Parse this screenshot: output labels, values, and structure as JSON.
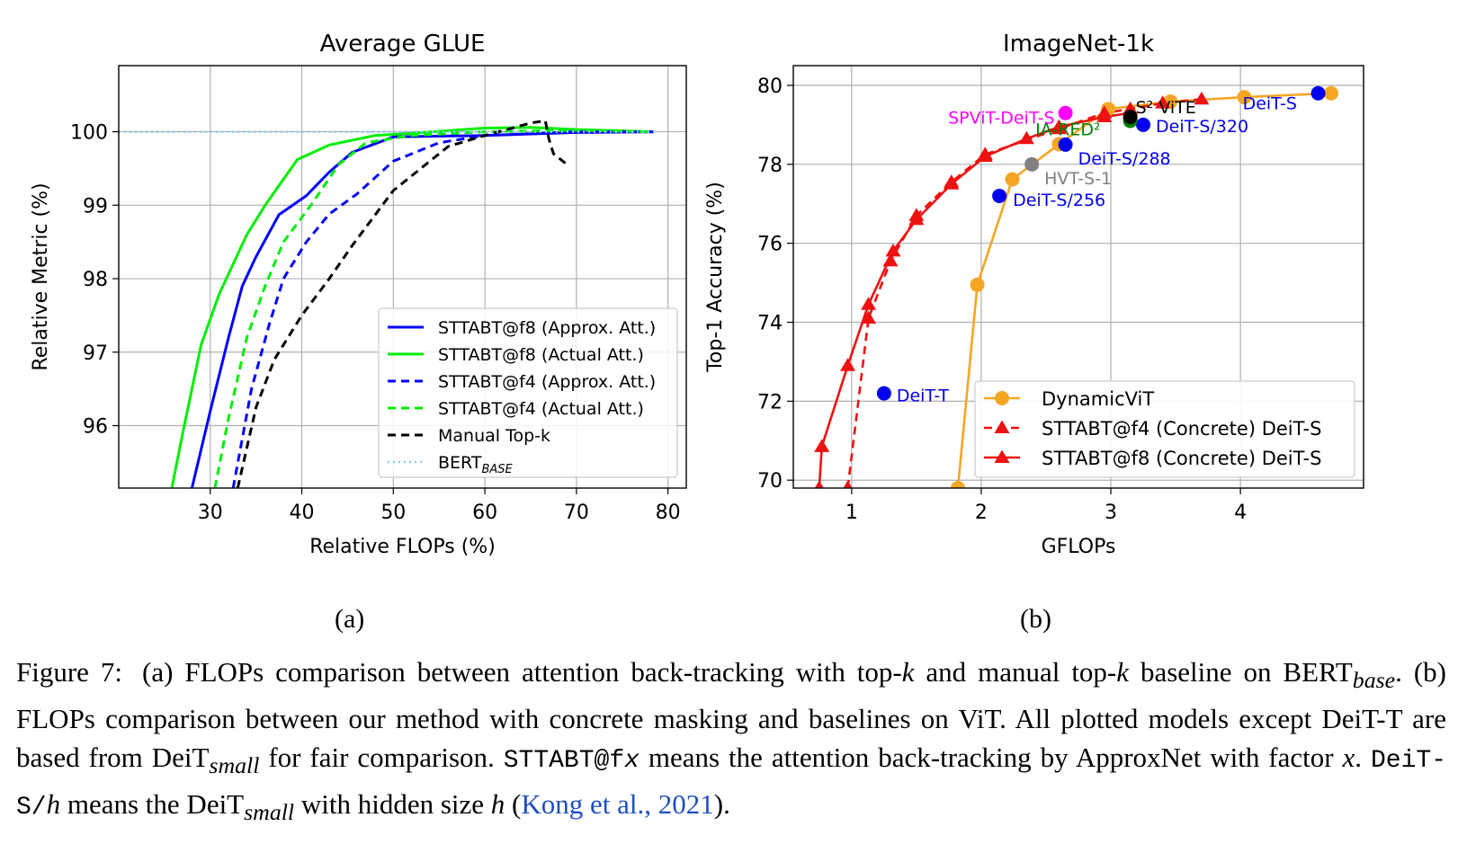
{
  "chart_data": [
    {
      "type": "line",
      "title": "Average GLUE",
      "xlabel": "Relative FLOPs (%)",
      "ylabel": "Relative Metric (%)",
      "xlim": [
        20,
        82
      ],
      "ylim": [
        95.15,
        100.9
      ],
      "xticks": [
        30,
        40,
        50,
        60,
        70,
        80
      ],
      "yticks": [
        96,
        97,
        98,
        99,
        100
      ],
      "grid": true,
      "legend_position": "bottom-right",
      "series": [
        {
          "name": "STTABT@f8 (Approx. Att.)",
          "color": "#0000ff",
          "dash": "solid",
          "x": [
            28.0,
            30.0,
            32.0,
            33.5,
            35.0,
            37.5,
            40.5,
            43.0,
            45.5,
            50.0,
            60.0,
            70.0,
            78.5
          ],
          "y": [
            95.15,
            96.2,
            97.2,
            97.9,
            98.3,
            98.87,
            99.13,
            99.45,
            99.72,
            99.93,
            99.95,
            99.99,
            100.0
          ]
        },
        {
          "name": "STTABT@f8 (Actual Att.)",
          "color": "#00ee00",
          "dash": "solid",
          "x": [
            25.8,
            27.0,
            29.0,
            31.0,
            34.0,
            36.0,
            39.5,
            43.0,
            48.0,
            52.0,
            60.0,
            65.0,
            70.0,
            78.5
          ],
          "y": [
            95.15,
            95.9,
            97.1,
            97.8,
            98.6,
            99.0,
            99.62,
            99.82,
            99.95,
            99.98,
            100.05,
            100.06,
            100.03,
            100.0
          ]
        },
        {
          "name": "STTABT@f4 (Approx. Att.)",
          "color": "#0000ff",
          "dash": "dashed",
          "x": [
            32.5,
            34.5,
            36.5,
            38.0,
            40.5,
            43.0,
            46.0,
            50.0,
            55.0,
            60.0,
            70.0,
            78.5
          ],
          "y": [
            95.15,
            96.5,
            97.4,
            98.0,
            98.5,
            98.88,
            99.15,
            99.6,
            99.85,
            99.95,
            100.0,
            100.0
          ]
        },
        {
          "name": "STTABT@f4 (Actual Att.)",
          "color": "#00ee00",
          "dash": "dashed",
          "x": [
            30.5,
            32.0,
            34.0,
            36.0,
            38.0,
            41.0,
            44.0,
            47.0,
            52.0,
            60.0,
            70.0,
            78.5
          ],
          "y": [
            95.15,
            96.1,
            97.2,
            97.9,
            98.5,
            99.0,
            99.55,
            99.85,
            99.95,
            100.0,
            100.02,
            100.0
          ]
        },
        {
          "name": "Manual Top-k",
          "color": "#000000",
          "dash": "dashed",
          "x": [
            33.0,
            35.0,
            37.0,
            40.0,
            43.0,
            45.5,
            50.0,
            53.0,
            56.0,
            60.0,
            63.0,
            65.0,
            66.6,
            67.0,
            67.5,
            69.0
          ],
          "y": [
            95.15,
            96.25,
            96.9,
            97.5,
            98.0,
            98.45,
            99.2,
            99.5,
            99.8,
            99.95,
            100.05,
            100.12,
            100.15,
            99.9,
            99.7,
            99.55
          ]
        },
        {
          "name": "BERT_BASE",
          "color": "#87cefa",
          "dash": "dotted",
          "x": [
            20.0,
            78.5
          ],
          "y": [
            100.0,
            100.0
          ]
        }
      ]
    },
    {
      "type": "line",
      "title": "ImageNet-1k",
      "xlabel": "GFLOPs",
      "ylabel": "Top-1 Accuracy (%)",
      "xlim": [
        0.55,
        4.95
      ],
      "ylim": [
        69.8,
        80.5
      ],
      "xticks": [
        1,
        2,
        3,
        4
      ],
      "yticks": [
        70,
        72,
        74,
        76,
        78,
        80
      ],
      "grid": true,
      "legend_position": "bottom-right",
      "series": [
        {
          "name": "DynamicViT",
          "color": "#f5a623",
          "marker": "circle",
          "dash": "solid",
          "x": [
            1.82,
            1.97,
            2.24,
            2.6,
            2.98,
            3.46,
            4.03,
            4.7
          ],
          "y": [
            69.8,
            74.95,
            77.62,
            78.51,
            79.4,
            79.59,
            79.7,
            79.8
          ]
        },
        {
          "name": "STTABT@f4 (Concrete) DeiT-S",
          "color": "#ee1111",
          "marker": "triangle",
          "dash": "dashed",
          "x": [
            0.97,
            1.13,
            1.3,
            1.5,
            1.77,
            2.03,
            2.6,
            2.95,
            3.15,
            3.4,
            3.7
          ],
          "y": [
            69.8,
            74.1,
            75.55,
            76.7,
            77.55,
            78.25,
            78.9,
            79.3,
            79.4,
            79.55,
            79.65
          ]
        },
        {
          "name": "STTABT@f8 (Concrete) DeiT-S",
          "color": "#ee1111",
          "marker": "triangle",
          "dash": "solid",
          "x": [
            0.75,
            0.77,
            0.97,
            1.13,
            1.32,
            1.5,
            1.77,
            2.03,
            2.35,
            2.6,
            2.95,
            3.15
          ],
          "y": [
            69.8,
            70.85,
            72.9,
            74.45,
            75.8,
            76.6,
            77.5,
            78.2,
            78.65,
            78.95,
            79.2,
            79.3
          ]
        }
      ],
      "points": [
        {
          "label": "DeiT-S",
          "x": 4.6,
          "y": 79.8,
          "color": "#0000ee",
          "text_color": "#0000ee"
        },
        {
          "label": "DeiT-S/320",
          "x": 3.25,
          "y": 79.0,
          "color": "#0000ee",
          "text_color": "#0000ee"
        },
        {
          "label": "DeiT-S/288",
          "x": 2.65,
          "y": 78.5,
          "color": "#0000ee",
          "text_color": "#0000ee"
        },
        {
          "label": "DeiT-S/256",
          "x": 2.14,
          "y": 77.2,
          "color": "#0000ee",
          "text_color": "#0000ee"
        },
        {
          "label": "DeiT-T",
          "x": 1.25,
          "y": 72.2,
          "color": "#0000ee",
          "text_color": "#0000ee"
        },
        {
          "label": "HVT-S-1",
          "x": 2.39,
          "y": 78.0,
          "color": "#808080",
          "text_color": "#808080"
        },
        {
          "label": "SPViT-DeiT-S",
          "x": 2.65,
          "y": 79.3,
          "color": "#ff00ff",
          "text_color": "#ff00ff"
        },
        {
          "label": "IA-RED²",
          "x": 3.15,
          "y": 79.1,
          "color": "#008000",
          "text_color": "#008000"
        },
        {
          "label": "S² ViTE",
          "x": 3.15,
          "y": 79.2,
          "color": "#000000",
          "text_color": "#000000"
        }
      ]
    }
  ],
  "legend_a": [
    {
      "label": "STTABT@f8 (Approx. Att.)"
    },
    {
      "label": "STTABT@f8 (Actual Att.)"
    },
    {
      "label": "STTABT@f4 (Approx. Att.)"
    },
    {
      "label": "STTABT@f4 (Actual Att.)"
    },
    {
      "label": "Manual Top-k"
    },
    {
      "label": "BERT",
      "sub": "BASE"
    }
  ],
  "sublabels": {
    "a": "(a)",
    "b": "(b)"
  },
  "caption": {
    "fig_num": "Figure 7:",
    "t1": "(a) FLOPs comparison between attention back-tracking with top-",
    "k1": "k",
    "t2": " and manual top-",
    "k2": "k",
    "t3": " baseline on BERT",
    "base_sub": "base",
    "t4": ". (b) FLOPs comparison between our method with concrete masking and baselines on ViT. All plotted models except DeiT-T are based from DeiT",
    "small_sub1": "small",
    "t5": " for fair comparison. ",
    "mono1": "STTABT@f",
    "x1": "x",
    "t6": " means the attention back-tracking by ApproxNet with factor ",
    "x2": "x",
    "t7": ". ",
    "mono2": "DeiT-S/",
    "h1": "h",
    "t8": " means the DeiT",
    "small_sub2": "small",
    "t9": " with hidden size ",
    "h2": "h",
    "t10": " (",
    "cite": "Kong et al., 2021",
    "t11": ")."
  }
}
